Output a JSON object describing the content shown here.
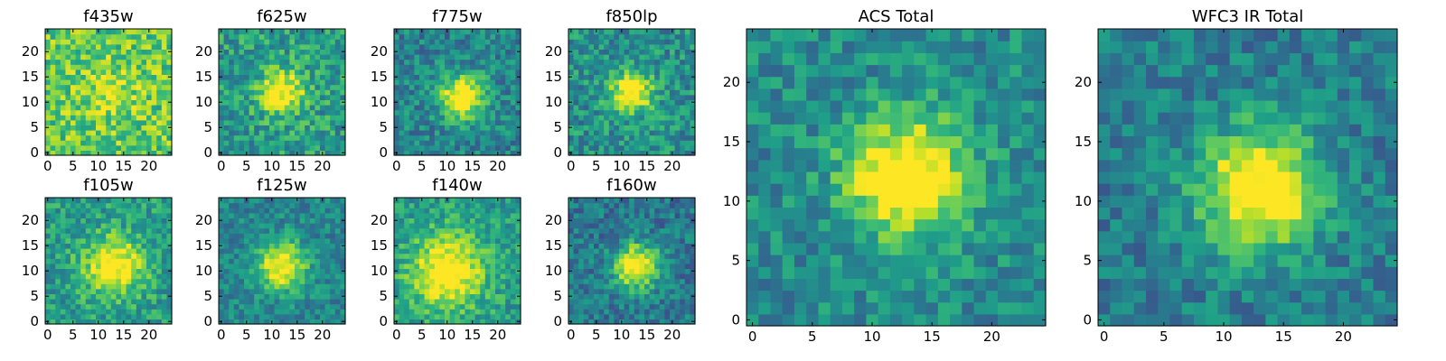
{
  "figure": {
    "colormap": "viridis",
    "pixel_grid": [
      25,
      25
    ],
    "panels": [
      {
        "title": "f435w",
        "peak": [
          12,
          12
        ],
        "spread": 4.0,
        "contrast": 0.15,
        "noise": 0.42,
        "bg": 0.75,
        "yticks": [
          0,
          5,
          10,
          15,
          20
        ],
        "xticks": [
          0,
          5,
          10,
          15,
          20
        ]
      },
      {
        "title": "f625w",
        "peak": [
          12,
          12
        ],
        "spread": 3.0,
        "contrast": 0.55,
        "noise": 0.4,
        "bg": 0.55,
        "yticks": [
          0,
          5,
          10,
          15,
          20
        ],
        "xticks": [
          0,
          5,
          10,
          15,
          20
        ]
      },
      {
        "title": "f775w",
        "peak": [
          13,
          11
        ],
        "spread": 3.0,
        "contrast": 0.7,
        "noise": 0.35,
        "bg": 0.45,
        "yticks": [
          0,
          5,
          10,
          15,
          20
        ],
        "xticks": [
          0,
          5,
          10,
          15,
          20
        ]
      },
      {
        "title": "f850lp",
        "peak": [
          12,
          12
        ],
        "spread": 3.0,
        "contrast": 0.6,
        "noise": 0.38,
        "bg": 0.5,
        "yticks": [
          0,
          5,
          10,
          15,
          20
        ],
        "xticks": [
          0,
          5,
          10,
          15,
          20
        ]
      },
      {
        "title": "f105w",
        "peak": [
          13,
          11
        ],
        "spread": 4.0,
        "contrast": 0.55,
        "noise": 0.35,
        "bg": 0.55,
        "yticks": [
          0,
          5,
          10,
          15,
          20
        ],
        "xticks": [
          0,
          5,
          10,
          15,
          20
        ]
      },
      {
        "title": "f125w",
        "peak": [
          12,
          11
        ],
        "spread": 3.5,
        "contrast": 0.6,
        "noise": 0.3,
        "bg": 0.45,
        "yticks": [
          0,
          5,
          10,
          15,
          20
        ],
        "xticks": [
          0,
          5,
          10,
          15,
          20
        ]
      },
      {
        "title": "f140w",
        "peak": [
          10,
          10
        ],
        "spread": 5.0,
        "contrast": 0.55,
        "noise": 0.32,
        "bg": 0.55,
        "yticks": [
          0,
          5,
          10,
          15,
          20
        ],
        "xticks": [
          0,
          5,
          10,
          15,
          20
        ]
      },
      {
        "title": "f160w",
        "peak": [
          13,
          11
        ],
        "spread": 3.0,
        "contrast": 0.75,
        "noise": 0.33,
        "bg": 0.4,
        "yticks": [
          0,
          5,
          10,
          15,
          20
        ],
        "xticks": [
          0,
          5,
          10,
          15,
          20
        ]
      },
      {
        "title": "ACS Total",
        "peak": [
          13,
          12
        ],
        "spread": 3.5,
        "contrast": 0.7,
        "noise": 0.32,
        "bg": 0.48,
        "yticks": [
          0,
          5,
          10,
          15,
          20
        ],
        "xticks": [
          0,
          5,
          10,
          15,
          20
        ]
      },
      {
        "title": "WFC3 IR Total",
        "peak": [
          13,
          11
        ],
        "spread": 3.5,
        "contrast": 0.75,
        "noise": 0.3,
        "bg": 0.42,
        "yticks": [
          0,
          5,
          10,
          15,
          20
        ],
        "xticks": [
          0,
          5,
          10,
          15,
          20
        ]
      }
    ]
  },
  "chart_data": {
    "type": "heatmap",
    "x_range": [
      0,
      24
    ],
    "y_range": [
      0,
      24
    ],
    "grid": false,
    "panels": [
      "f435w",
      "f625w",
      "f775w",
      "f850lp",
      "f105w",
      "f125w",
      "f140w",
      "f160w",
      "ACS Total",
      "WFC3 IR Total"
    ]
  }
}
